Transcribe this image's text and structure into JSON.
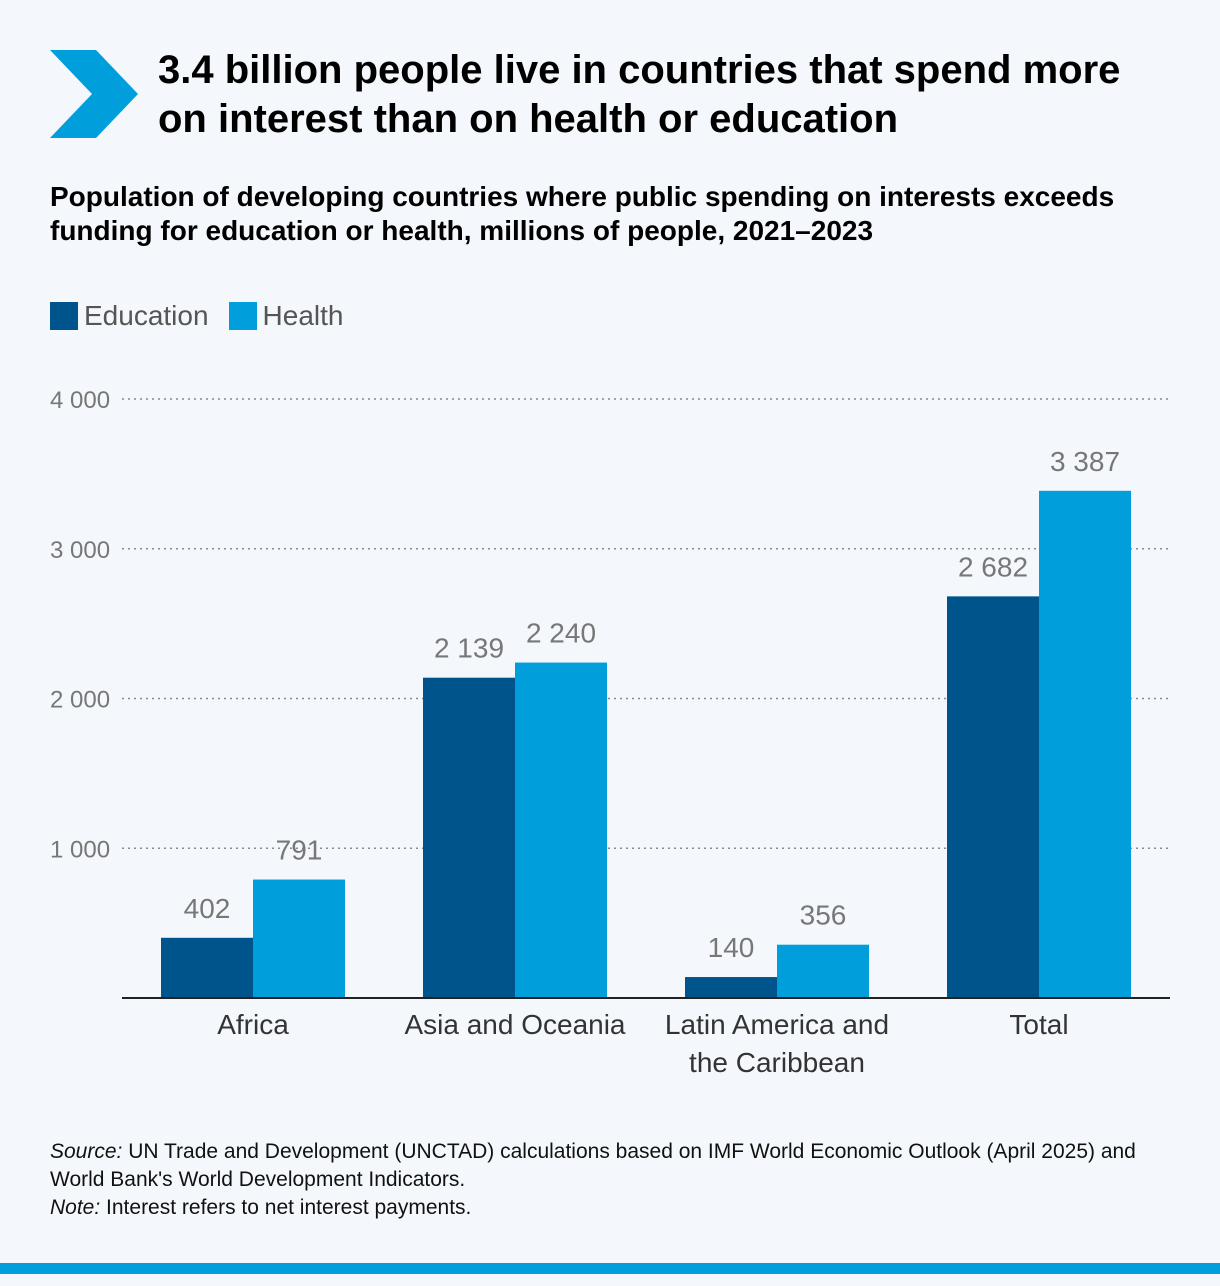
{
  "title": "3.4 billion people live in countries that spend more on interest than on health or education",
  "subtitle": "Population of developing countries where public spending on interests exceeds funding for education or health, millions of people, 2021–2023",
  "colors": {
    "education": "#00548c",
    "health": "#009edb",
    "accent": "#009edb"
  },
  "legend": {
    "education": "Education",
    "health": "Health"
  },
  "chart_data": {
    "type": "bar",
    "categories": [
      [
        "Africa"
      ],
      [
        "Asia and Oceania"
      ],
      [
        "Latin America and",
        "the Caribbean"
      ],
      [
        "Total"
      ]
    ],
    "series": [
      {
        "name": "Education",
        "values": [
          402,
          2139,
          140,
          2682
        ],
        "labels": [
          "402",
          "2 139",
          "140",
          "2 682"
        ]
      },
      {
        "name": "Health",
        "values": [
          791,
          2240,
          356,
          3387
        ],
        "labels": [
          "791",
          "2 240",
          "356",
          "3 387"
        ]
      }
    ],
    "ylim": [
      0,
      4000
    ],
    "yticks": [
      1000,
      2000,
      3000,
      4000
    ],
    "ytick_labels": [
      "1 000",
      "2 000",
      "3 000",
      "4 000"
    ],
    "grid": true,
    "legend_position": "top-left"
  },
  "source": {
    "source_label": "Source:",
    "source_text": " UN Trade and Development (UNCTAD) calculations based on IMF World Economic Outlook (April 2025) and World Bank's World Development Indicators.",
    "note_label": "Note:",
    "note_text": " Interest refers to net interest payments."
  }
}
